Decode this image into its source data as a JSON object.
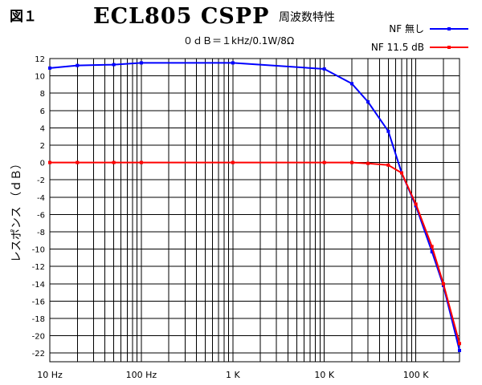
{
  "header": {
    "figure_label": "図１",
    "title": "ECL805 CSPP",
    "subtitle": "周波数特性",
    "reference": "０ｄＢ＝１kHz/0.1W/8Ω"
  },
  "chart_data": {
    "type": "line",
    "xscale": "log",
    "xlim": [
      10,
      300000
    ],
    "ylim": [
      -23,
      12
    ],
    "grid": true,
    "legend_position": "top-right",
    "xlabel": "",
    "ylabel": "レスポンス （ｄＢ）",
    "x_tick_labels": [
      {
        "value": 10,
        "label": "10 Hz"
      },
      {
        "value": 100,
        "label": "100 Hz"
      },
      {
        "value": 1000,
        "label": "1 K"
      },
      {
        "value": 10000,
        "label": "10 K"
      },
      {
        "value": 100000,
        "label": "100 K"
      }
    ],
    "y_ticks": [
      12,
      10,
      8,
      6,
      4,
      2,
      0,
      -2,
      -4,
      -6,
      -8,
      -10,
      -12,
      -14,
      -16,
      -18,
      -20,
      -22
    ],
    "series": [
      {
        "name": "NF 無し",
        "color": "#0000ff",
        "x": [
          10,
          20,
          50,
          100,
          1000,
          10000,
          20000,
          30000,
          50000,
          70000,
          100000,
          150000,
          200000,
          300000
        ],
        "y": [
          10.9,
          11.2,
          11.3,
          11.5,
          11.5,
          10.8,
          9.1,
          7.0,
          3.6,
          -1.2,
          -5.0,
          -10.3,
          -14.2,
          -21.7
        ]
      },
      {
        "name": "NF 11.5 dB",
        "color": "#ff0000",
        "x": [
          10,
          20,
          50,
          100,
          1000,
          10000,
          20000,
          30000,
          50000,
          70000,
          100000,
          150000,
          200000,
          300000
        ],
        "y": [
          0,
          0,
          0,
          0,
          0,
          0,
          0,
          -0.1,
          -0.3,
          -1.2,
          -4.8,
          -9.7,
          -14.0,
          -20.9
        ]
      }
    ]
  }
}
